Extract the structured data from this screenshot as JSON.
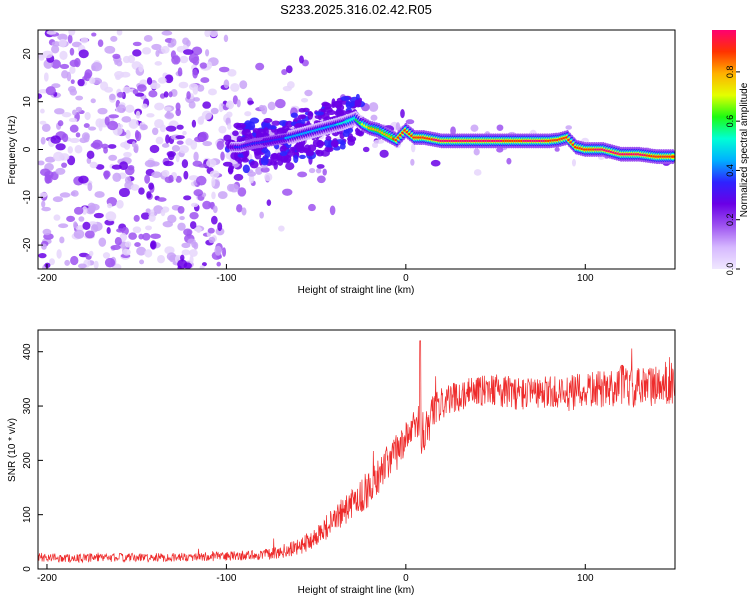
{
  "title": "S233.2025.316.02.42.R05",
  "chart_data": [
    {
      "type": "heatmap",
      "xlabel": "Height of straight line (km)",
      "ylabel": "Frequency (Hz)",
      "xlim": [
        -205,
        150
      ],
      "ylim": [
        -25,
        25
      ],
      "xticks": [
        -200,
        -100,
        0,
        100
      ],
      "yticks": [
        -20,
        -10,
        0,
        10,
        20
      ],
      "colorbar": {
        "label": "Normalized spectral amplitude",
        "range": [
          0,
          0.97
        ],
        "ticks": [
          "0.0",
          "0.2",
          "0.4",
          "0.6",
          "0.8"
        ],
        "tick_values": [
          0,
          0.2,
          0.4,
          0.6,
          0.8
        ],
        "colors": [
          "#f0e8ff",
          "#d6b8ff",
          "#9d52f0",
          "#6a00e6",
          "#2e23ff",
          "#00b0ff",
          "#00ffd5",
          "#1dfb12",
          "#e4ff00",
          "#ffb000",
          "#ff3300",
          "#ff0070"
        ]
      },
      "ridge": {
        "x": [
          -97,
          -92,
          -85,
          -75,
          -65,
          -55,
          -45,
          -35,
          -28,
          -25,
          -20,
          -15,
          -10,
          -5,
          0,
          5,
          10,
          20,
          30,
          40,
          50,
          60,
          70,
          80,
          85,
          90,
          95,
          100,
          110,
          120,
          130,
          140,
          150
        ],
        "freq": [
          0.5,
          0.5,
          1.2,
          1.8,
          2.5,
          3.5,
          4.5,
          5.5,
          6.5,
          5.5,
          4.5,
          4.0,
          3.0,
          2.0,
          4.0,
          2.5,
          2.5,
          1.8,
          1.8,
          1.8,
          1.8,
          1.8,
          1.8,
          1.8,
          2.0,
          2.5,
          0.5,
          0.0,
          0.0,
          -1.0,
          -1.0,
          -1.5,
          -1.5
        ],
        "amplitude": [
          0.3,
          0.32,
          0.35,
          0.38,
          0.4,
          0.42,
          0.45,
          0.5,
          0.55,
          0.65,
          0.75,
          0.8,
          0.82,
          0.85,
          0.85,
          0.88,
          0.9,
          0.95,
          0.95,
          0.95,
          0.95,
          0.9,
          0.95,
          0.92,
          0.9,
          0.85,
          0.88,
          0.9,
          0.95,
          0.95,
          0.95,
          0.9,
          0.9
        ]
      }
    },
    {
      "type": "line",
      "xlabel": "Height of straight line (km)",
      "ylabel": "SNR (10 * v/v)",
      "xlim": [
        -205,
        150
      ],
      "ylim": [
        0,
        440
      ],
      "xticks": [
        -200,
        -100,
        0,
        100
      ],
      "yticks": [
        0,
        100,
        200,
        300,
        400
      ],
      "color": "#ee2b2b",
      "series": [
        {
          "name": "SNR",
          "x": [
            -205,
            -190,
            -180,
            -160,
            -140,
            -120,
            -100,
            -90,
            -80,
            -70,
            -60,
            -50,
            -40,
            -30,
            -20,
            -15,
            -10,
            -5,
            0,
            5,
            10,
            15,
            20,
            30,
            40,
            50,
            60,
            70,
            80,
            90,
            100,
            110,
            120,
            130,
            140,
            150
          ],
          "values": [
            22,
            20,
            20,
            21,
            21,
            22,
            23,
            25,
            26,
            30,
            40,
            60,
            90,
            120,
            150,
            170,
            195,
            215,
            240,
            265,
            255,
            290,
            305,
            320,
            330,
            330,
            325,
            320,
            325,
            320,
            330,
            330,
            340,
            330,
            340,
            345
          ],
          "noise": [
            8,
            8,
            8,
            8,
            8,
            8,
            9,
            9,
            10,
            12,
            15,
            20,
            25,
            30,
            35,
            35,
            35,
            35,
            30,
            28,
            60,
            30,
            30,
            28,
            30,
            30,
            32,
            32,
            32,
            35,
            35,
            35,
            40,
            40,
            40,
            40
          ]
        }
      ]
    }
  ]
}
